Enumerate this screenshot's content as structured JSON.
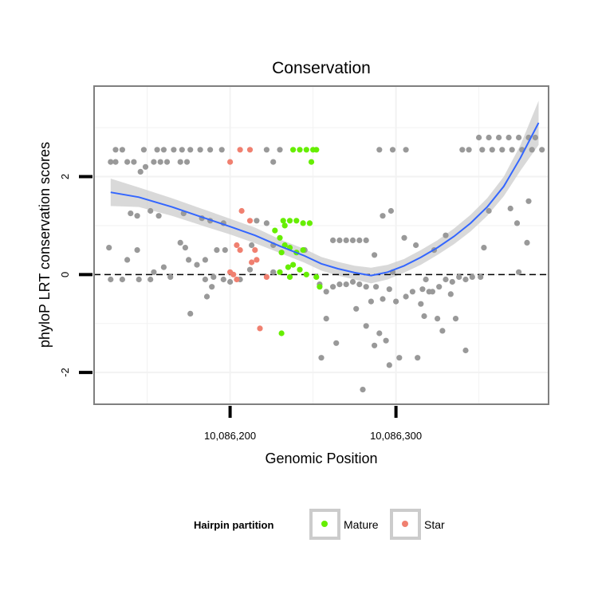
{
  "chart_data": {
    "type": "scatter",
    "title": "Conservation",
    "xlabel": "Genomic Position",
    "ylabel": "phyloP LRT conservation scores",
    "xlim": [
      10086118,
      10086392
    ],
    "ylim": [
      -2.65,
      3.85
    ],
    "x_ticks": [
      {
        "value": 10086200,
        "label": "10,086,200"
      },
      {
        "value": 10086300,
        "label": "10,086,300"
      }
    ],
    "y_ticks": [
      {
        "value": -2,
        "label": "-2"
      },
      {
        "value": 0,
        "label": "0"
      },
      {
        "value": 2,
        "label": "2"
      }
    ],
    "reference_line": {
      "y": 0,
      "style": "dashed"
    },
    "grid": true,
    "legend": {
      "title": "Hairpin partition",
      "position": "bottom",
      "entries": [
        {
          "name": "Mature",
          "color": "#66ee00"
        },
        {
          "name": "Star",
          "color": "#f08070"
        }
      ]
    },
    "colors": {
      "other": "#999999",
      "smooth_line": "#3366ff",
      "smooth_band": "#cccccc"
    },
    "series": [
      {
        "name": "",
        "color": "#999999",
        "points": [
          [
            10086131,
            2.55
          ],
          [
            10086135,
            2.55
          ],
          [
            10086148,
            2.55
          ],
          [
            10086156,
            2.55
          ],
          [
            10086160,
            2.55
          ],
          [
            10086166,
            2.55
          ],
          [
            10086171,
            2.55
          ],
          [
            10086176,
            2.55
          ],
          [
            10086182,
            2.55
          ],
          [
            10086188,
            2.55
          ],
          [
            10086195,
            2.55
          ],
          [
            10086222,
            2.55
          ],
          [
            10086230,
            2.55
          ],
          [
            10086290,
            2.55
          ],
          [
            10086298,
            2.55
          ],
          [
            10086306,
            2.55
          ],
          [
            10086128,
            2.3
          ],
          [
            10086131,
            2.3
          ],
          [
            10086138,
            2.3
          ],
          [
            10086142,
            2.3
          ],
          [
            10086154,
            2.3
          ],
          [
            10086158,
            2.3
          ],
          [
            10086162,
            2.3
          ],
          [
            10086170,
            2.3
          ],
          [
            10086174,
            2.3
          ],
          [
            10086226,
            2.3
          ],
          [
            10086146,
            2.1
          ],
          [
            10086149,
            2.2
          ],
          [
            10086140,
            1.25
          ],
          [
            10086144,
            1.2
          ],
          [
            10086152,
            1.3
          ],
          [
            10086157,
            1.2
          ],
          [
            10086172,
            1.25
          ],
          [
            10086183,
            1.15
          ],
          [
            10086188,
            1.1
          ],
          [
            10086196,
            1.05
          ],
          [
            10086216,
            1.1
          ],
          [
            10086222,
            1.05
          ],
          [
            10086292,
            1.2
          ],
          [
            10086297,
            1.3
          ],
          [
            10086356,
            1.3
          ],
          [
            10086380,
            1.5
          ],
          [
            10086127,
            0.55
          ],
          [
            10086138,
            0.3
          ],
          [
            10086144,
            0.5
          ],
          [
            10086154,
            0.05
          ],
          [
            10086170,
            0.65
          ],
          [
            10086173,
            0.55
          ],
          [
            10086185,
            0.3
          ],
          [
            10086192,
            0.5
          ],
          [
            10086197,
            0.5
          ],
          [
            10086213,
            0.6
          ],
          [
            10086226,
            0.6
          ],
          [
            10086245,
            0.5
          ],
          [
            10086262,
            0.7
          ],
          [
            10086266,
            0.7
          ],
          [
            10086270,
            0.7
          ],
          [
            10086274,
            0.7
          ],
          [
            10086278,
            0.7
          ],
          [
            10086282,
            0.7
          ],
          [
            10086287,
            0.4
          ],
          [
            10086298,
            0.05
          ],
          [
            10086305,
            0.75
          ],
          [
            10086312,
            0.6
          ],
          [
            10086323,
            0.5
          ],
          [
            10086330,
            0.8
          ],
          [
            10086353,
            0.55
          ],
          [
            10086369,
            1.35
          ],
          [
            10086373,
            1.05
          ],
          [
            10086379,
            0.65
          ],
          [
            10086128,
            -0.1
          ],
          [
            10086135,
            -0.1
          ],
          [
            10086145,
            -0.1
          ],
          [
            10086152,
            -0.1
          ],
          [
            10086160,
            0.15
          ],
          [
            10086164,
            -0.05
          ],
          [
            10086175,
            0.3
          ],
          [
            10086180,
            0.2
          ],
          [
            10086185,
            -0.1
          ],
          [
            10086190,
            -0.05
          ],
          [
            10086196,
            -0.1
          ],
          [
            10086200,
            -0.15
          ],
          [
            10086206,
            -0.1
          ],
          [
            10086212,
            0.1
          ],
          [
            10086226,
            0.05
          ],
          [
            10086186,
            -0.45
          ],
          [
            10086189,
            -0.25
          ],
          [
            10086176,
            -0.8
          ],
          [
            10086258,
            -0.35
          ],
          [
            10086262,
            -0.25
          ],
          [
            10086266,
            -0.2
          ],
          [
            10086270,
            -0.2
          ],
          [
            10086274,
            -0.15
          ],
          [
            10086278,
            -0.2
          ],
          [
            10086282,
            -0.25
          ],
          [
            10086285,
            -0.55
          ],
          [
            10086288,
            -0.25
          ],
          [
            10086292,
            -0.5
          ],
          [
            10086296,
            -0.3
          ],
          [
            10086300,
            -0.55
          ],
          [
            10086306,
            -0.45
          ],
          [
            10086310,
            -0.35
          ],
          [
            10086316,
            -0.3
          ],
          [
            10086318,
            -0.1
          ],
          [
            10086322,
            -0.35
          ],
          [
            10086326,
            -0.25
          ],
          [
            10086330,
            -0.1
          ],
          [
            10086334,
            -0.15
          ],
          [
            10086338,
            -0.05
          ],
          [
            10086342,
            -0.1
          ],
          [
            10086346,
            -0.05
          ],
          [
            10086351,
            -0.05
          ],
          [
            10086254,
            -0.2
          ],
          [
            10086258,
            -0.9
          ],
          [
            10086264,
            -1.4
          ],
          [
            10086276,
            -0.7
          ],
          [
            10086282,
            -1.05
          ],
          [
            10086287,
            -1.45
          ],
          [
            10086290,
            -1.2
          ],
          [
            10086294,
            -1.35
          ],
          [
            10086296,
            -1.85
          ],
          [
            10086302,
            -1.7
          ],
          [
            10086313,
            -1.7
          ],
          [
            10086315,
            -0.6
          ],
          [
            10086317,
            -0.85
          ],
          [
            10086320,
            -0.35
          ],
          [
            10086325,
            -0.9
          ],
          [
            10086328,
            -1.15
          ],
          [
            10086333,
            -0.4
          ],
          [
            10086336,
            -0.9
          ],
          [
            10086342,
            -1.55
          ],
          [
            10086255,
            -1.7
          ],
          [
            10086280,
            -2.35
          ],
          [
            10086350,
            2.8
          ],
          [
            10086356,
            2.8
          ],
          [
            10086362,
            2.8
          ],
          [
            10086368,
            2.8
          ],
          [
            10086374,
            2.8
          ],
          [
            10086380,
            2.8
          ],
          [
            10086384,
            2.8
          ],
          [
            10086352,
            2.55
          ],
          [
            10086358,
            2.55
          ],
          [
            10086364,
            2.55
          ],
          [
            10086370,
            2.55
          ],
          [
            10086376,
            2.55
          ],
          [
            10086382,
            2.55
          ],
          [
            10086388,
            2.55
          ],
          [
            10086374,
            0.05
          ],
          [
            10086340,
            2.55
          ],
          [
            10086344,
            2.55
          ]
        ]
      },
      {
        "name": "Mature",
        "color": "#66ee00",
        "points": [
          [
            10086238,
            2.55
          ],
          [
            10086242,
            2.55
          ],
          [
            10086246,
            2.55
          ],
          [
            10086250,
            2.55
          ],
          [
            10086252,
            2.55
          ],
          [
            10086249,
            2.3
          ],
          [
            10086232,
            1.1
          ],
          [
            10086236,
            1.1
          ],
          [
            10086240,
            1.1
          ],
          [
            10086244,
            1.05
          ],
          [
            10086248,
            1.05
          ],
          [
            10086233,
            1.0
          ],
          [
            10086227,
            0.9
          ],
          [
            10086230,
            0.75
          ],
          [
            10086233,
            0.6
          ],
          [
            10086236,
            0.55
          ],
          [
            10086240,
            0.45
          ],
          [
            10086244,
            0.5
          ],
          [
            10086231,
            0.45
          ],
          [
            10086238,
            0.2
          ],
          [
            10086242,
            0.1
          ],
          [
            10086246,
            0.0
          ],
          [
            10086235,
            0.15
          ],
          [
            10086230,
            0.05
          ],
          [
            10086236,
            -0.05
          ],
          [
            10086252,
            -0.05
          ],
          [
            10086254,
            -0.25
          ],
          [
            10086231,
            -1.2
          ]
        ]
      },
      {
        "name": "Star",
        "color": "#f08070",
        "points": [
          [
            10086206,
            2.55
          ],
          [
            10086212,
            2.55
          ],
          [
            10086200,
            2.3
          ],
          [
            10086207,
            1.3
          ],
          [
            10086212,
            1.1
          ],
          [
            10086204,
            0.6
          ],
          [
            10086206,
            0.5
          ],
          [
            10086215,
            0.5
          ],
          [
            10086213,
            0.25
          ],
          [
            10086216,
            0.3
          ],
          [
            10086200,
            0.05
          ],
          [
            10086202,
            0.0
          ],
          [
            10086204,
            -0.1
          ],
          [
            10086222,
            -0.05
          ],
          [
            10086218,
            -1.1
          ]
        ]
      }
    ],
    "smooth": {
      "x": [
        10086128,
        10086145,
        10086165,
        10086185,
        10086200,
        10086215,
        10086230,
        10086245,
        10086255,
        10086265,
        10086275,
        10086285,
        10086295,
        10086305,
        10086315,
        10086325,
        10086335,
        10086345,
        10086355,
        10086365,
        10086375,
        10086386
      ],
      "y": [
        1.68,
        1.58,
        1.38,
        1.15,
        0.98,
        0.8,
        0.58,
        0.38,
        0.22,
        0.12,
        0.04,
        -0.02,
        0.05,
        0.18,
        0.35,
        0.55,
        0.78,
        1.05,
        1.38,
        1.8,
        2.38,
        3.1
      ],
      "se_lower": [
        1.4,
        1.38,
        1.2,
        0.98,
        0.82,
        0.64,
        0.44,
        0.24,
        0.08,
        -0.02,
        -0.1,
        -0.18,
        -0.1,
        0.04,
        0.2,
        0.4,
        0.62,
        0.88,
        1.2,
        1.6,
        2.12,
        2.65
      ],
      "se_upper": [
        1.96,
        1.78,
        1.56,
        1.32,
        1.14,
        0.96,
        0.72,
        0.52,
        0.36,
        0.26,
        0.18,
        0.14,
        0.2,
        0.32,
        0.5,
        0.7,
        0.94,
        1.22,
        1.56,
        2.0,
        2.64,
        3.55
      ]
    }
  }
}
